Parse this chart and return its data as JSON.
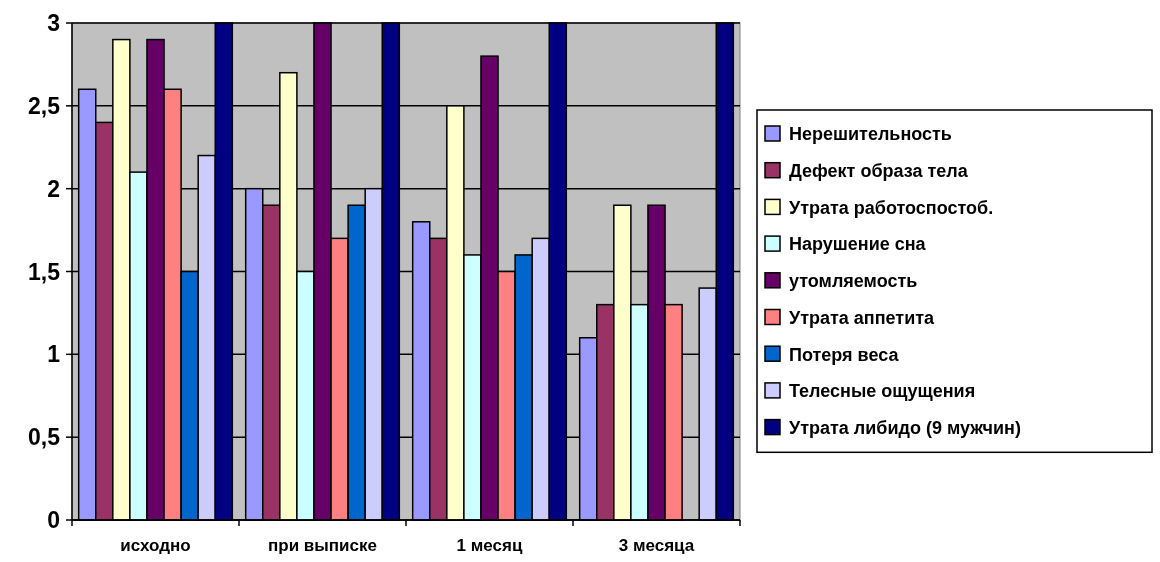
{
  "chart_data": {
    "type": "bar",
    "categories": [
      "исходно",
      "при выписке",
      "1 месяц",
      "3 месяца"
    ],
    "series": [
      {
        "name": "Нерешительность",
        "color": "#9999ff",
        "values": [
          2.6,
          2.0,
          1.8,
          1.1
        ]
      },
      {
        "name": "Дефект образа тела",
        "color": "#993366",
        "values": [
          2.4,
          1.9,
          1.7,
          1.3
        ]
      },
      {
        "name": "Утрата работоспостоб.",
        "color": "#ffffcc",
        "values": [
          2.9,
          2.7,
          2.5,
          1.9
        ]
      },
      {
        "name": "Нарушение сна",
        "color": "#ccffff",
        "values": [
          2.1,
          1.5,
          1.6,
          1.3
        ]
      },
      {
        "name": "утомляемость",
        "color": "#660066",
        "values": [
          2.9,
          3.0,
          2.8,
          1.9
        ]
      },
      {
        "name": "Утрата аппетита",
        "color": "#ff8080",
        "values": [
          2.6,
          1.7,
          1.5,
          1.3
        ]
      },
      {
        "name": "Потеря веса",
        "color": "#0066cc",
        "values": [
          1.5,
          1.9,
          1.6,
          null
        ]
      },
      {
        "name": "Телесные ощущения",
        "color": "#ccccff",
        "values": [
          2.2,
          2.0,
          1.7,
          1.4
        ]
      },
      {
        "name": "Утрата либидо (9 мужчин)",
        "color": "#000080",
        "values": [
          3,
          3,
          3,
          3
        ]
      }
    ],
    "ylim": [
      0,
      3
    ],
    "yticks": [
      0,
      {
        "value": 0.5,
        "label": "0,5"
      },
      1,
      {
        "value": 1.5,
        "label": "1,5"
      },
      2,
      {
        "value": 2.5,
        "label": "2,5"
      },
      3
    ],
    "grid": "y",
    "legend": "right"
  }
}
